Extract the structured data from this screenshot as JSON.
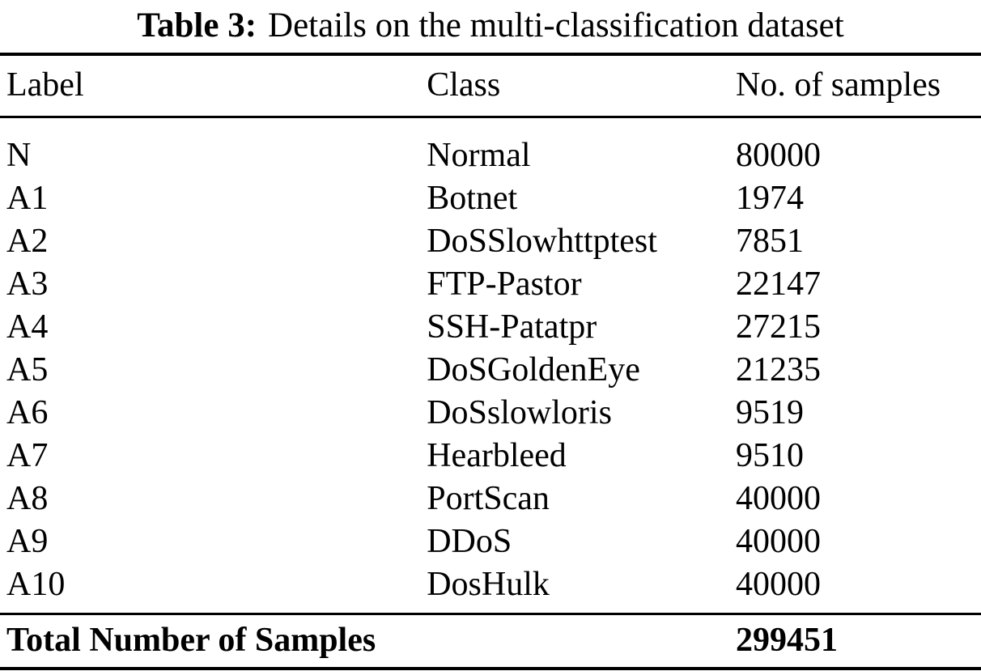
{
  "caption": {
    "label": "Table 3:",
    "text": "Details on the multi-classification dataset"
  },
  "table": {
    "headers": {
      "label": "Label",
      "class": "Class",
      "samples": "No. of samples"
    },
    "rows": [
      {
        "label": "N",
        "class": "Normal",
        "samples": "80000"
      },
      {
        "label": "A1",
        "class": "Botnet",
        "samples": "1974"
      },
      {
        "label": "A2",
        "class": "DoSSlowhttptest",
        "samples": "7851"
      },
      {
        "label": "A3",
        "class": "FTP-Pastor",
        "samples": "22147"
      },
      {
        "label": "A4",
        "class": "SSH-Patatpr",
        "samples": "27215"
      },
      {
        "label": "A5",
        "class": "DoSGoldenEye",
        "samples": "21235"
      },
      {
        "label": "A6",
        "class": "DoSslowloris",
        "samples": "9519"
      },
      {
        "label": "A7",
        "class": "Hearbleed",
        "samples": "9510"
      },
      {
        "label": "A8",
        "class": "PortScan",
        "samples": "40000"
      },
      {
        "label": "A9",
        "class": "DDoS",
        "samples": "40000"
      },
      {
        "label": "A10",
        "class": "DosHulk",
        "samples": "40000"
      }
    ],
    "total": {
      "label": "Total Number of Samples",
      "samples": "299451"
    }
  },
  "colors": {
    "text": "#000000",
    "background": "#ffffff",
    "rule": "#000000"
  }
}
